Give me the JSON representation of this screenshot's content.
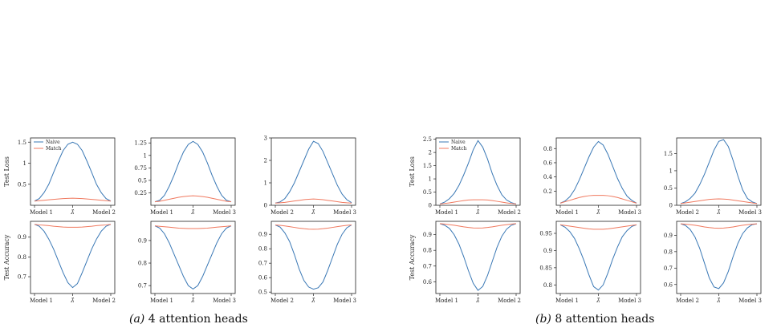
{
  "colors": {
    "naive": "#3a78b5",
    "match": "#f0795f",
    "axis": "#222222"
  },
  "captions": [
    {
      "label": "(a)",
      "text": "4 attention heads"
    },
    {
      "label": "(b)",
      "text": "8 attention heads"
    }
  ],
  "chart_data": [
    {
      "type": "line",
      "group": "a",
      "row": "loss",
      "ylabel": "Test Loss",
      "x_ticklabels": [
        "Model 1",
        "λ̂",
        "Model 2"
      ],
      "ylim": [
        0.0,
        1.6
      ],
      "yticks": [
        0.5,
        1.0,
        1.5
      ],
      "legend": {
        "placement": "top-left",
        "entries": [
          "Naive",
          "Match"
        ]
      },
      "series": [
        {
          "name": "Naive",
          "values": [
            0.1,
            0.16,
            0.3,
            0.5,
            0.78,
            1.05,
            1.3,
            1.45,
            1.5,
            1.45,
            1.3,
            1.05,
            0.78,
            0.5,
            0.3,
            0.16,
            0.1
          ]
        },
        {
          "name": "Match",
          "values": [
            0.1,
            0.11,
            0.12,
            0.13,
            0.14,
            0.15,
            0.16,
            0.165,
            0.17,
            0.165,
            0.16,
            0.15,
            0.14,
            0.13,
            0.12,
            0.11,
            0.1
          ]
        }
      ]
    },
    {
      "type": "line",
      "group": "a",
      "row": "loss",
      "ylabel": "",
      "x_ticklabels": [
        "Model 1",
        "λ̂",
        "Model 3"
      ],
      "ylim": [
        0.0,
        1.35
      ],
      "yticks": [
        0.25,
        0.5,
        0.75,
        1.0,
        1.25
      ],
      "series": [
        {
          "name": "Naive",
          "values": [
            0.07,
            0.1,
            0.2,
            0.38,
            0.6,
            0.85,
            1.07,
            1.22,
            1.28,
            1.22,
            1.07,
            0.85,
            0.6,
            0.38,
            0.2,
            0.1,
            0.07
          ]
        },
        {
          "name": "Match",
          "values": [
            0.07,
            0.08,
            0.1,
            0.12,
            0.14,
            0.16,
            0.175,
            0.185,
            0.19,
            0.185,
            0.175,
            0.16,
            0.14,
            0.12,
            0.1,
            0.08,
            0.07
          ]
        }
      ]
    },
    {
      "type": "line",
      "group": "a",
      "row": "loss",
      "ylabel": "",
      "x_ticklabels": [
        "Model 2",
        "λ̂",
        "Model 3"
      ],
      "ylim": [
        0.0,
        3.0
      ],
      "yticks": [
        0,
        1,
        2,
        3
      ],
      "series": [
        {
          "name": "Naive",
          "values": [
            0.1,
            0.15,
            0.3,
            0.6,
            1.0,
            1.5,
            2.0,
            2.5,
            2.85,
            2.75,
            2.4,
            1.9,
            1.4,
            0.9,
            0.5,
            0.25,
            0.12
          ]
        },
        {
          "name": "Match",
          "values": [
            0.1,
            0.11,
            0.13,
            0.16,
            0.19,
            0.22,
            0.25,
            0.27,
            0.28,
            0.27,
            0.25,
            0.22,
            0.19,
            0.16,
            0.13,
            0.11,
            0.1
          ]
        }
      ]
    },
    {
      "type": "line",
      "group": "a",
      "row": "accuracy",
      "ylabel": "Test Accuracy",
      "x_ticklabels": [
        "Model 1",
        "λ̂",
        "Model 2"
      ],
      "ylim": [
        0.615,
        0.98
      ],
      "yticks": [
        0.7,
        0.8,
        0.9
      ],
      "series": [
        {
          "name": "Naive",
          "values": [
            0.965,
            0.955,
            0.93,
            0.89,
            0.84,
            0.78,
            0.72,
            0.67,
            0.645,
            0.665,
            0.72,
            0.78,
            0.84,
            0.89,
            0.93,
            0.955,
            0.965
          ]
        },
        {
          "name": "Match",
          "values": [
            0.965,
            0.962,
            0.96,
            0.958,
            0.955,
            0.953,
            0.951,
            0.95,
            0.95,
            0.95,
            0.951,
            0.953,
            0.955,
            0.958,
            0.96,
            0.962,
            0.965
          ]
        }
      ]
    },
    {
      "type": "line",
      "group": "a",
      "row": "accuracy",
      "ylabel": "",
      "x_ticklabels": [
        "Model 1",
        "λ̂",
        "Model 3"
      ],
      "ylim": [
        0.665,
        0.985
      ],
      "yticks": [
        0.7,
        0.8,
        0.9
      ],
      "series": [
        {
          "name": "Naive",
          "values": [
            0.965,
            0.955,
            0.93,
            0.89,
            0.84,
            0.79,
            0.74,
            0.7,
            0.685,
            0.7,
            0.74,
            0.79,
            0.84,
            0.89,
            0.93,
            0.955,
            0.965
          ]
        },
        {
          "name": "Match",
          "values": [
            0.965,
            0.963,
            0.961,
            0.959,
            0.957,
            0.955,
            0.954,
            0.953,
            0.953,
            0.953,
            0.954,
            0.955,
            0.957,
            0.959,
            0.961,
            0.963,
            0.965
          ]
        }
      ]
    },
    {
      "type": "line",
      "group": "a",
      "row": "accuracy",
      "ylabel": "",
      "x_ticklabels": [
        "Model 2",
        "λ̂",
        "Model 3"
      ],
      "ylim": [
        0.49,
        0.99
      ],
      "yticks": [
        0.5,
        0.6,
        0.7,
        0.8,
        0.9
      ],
      "series": [
        {
          "name": "Naive",
          "values": [
            0.965,
            0.95,
            0.91,
            0.85,
            0.76,
            0.66,
            0.58,
            0.535,
            0.52,
            0.53,
            0.57,
            0.65,
            0.74,
            0.83,
            0.9,
            0.945,
            0.965
          ]
        },
        {
          "name": "Match",
          "values": [
            0.965,
            0.962,
            0.958,
            0.953,
            0.948,
            0.943,
            0.939,
            0.936,
            0.935,
            0.936,
            0.939,
            0.943,
            0.948,
            0.953,
            0.958,
            0.962,
            0.965
          ]
        }
      ]
    },
    {
      "type": "line",
      "group": "b",
      "row": "loss",
      "ylabel": "Test Loss",
      "x_ticklabels": [
        "Model 1",
        "λ̂",
        "Model 2"
      ],
      "ylim": [
        0.0,
        2.55
      ],
      "yticks": [
        0.0,
        0.5,
        1.0,
        1.5,
        2.0,
        2.5
      ],
      "legend": {
        "placement": "top-left",
        "entries": [
          "Naive",
          "Match"
        ]
      },
      "series": [
        {
          "name": "Naive",
          "values": [
            0.05,
            0.12,
            0.25,
            0.45,
            0.75,
            1.15,
            1.6,
            2.1,
            2.45,
            2.2,
            1.75,
            1.2,
            0.75,
            0.4,
            0.2,
            0.1,
            0.05
          ]
        },
        {
          "name": "Match",
          "values": [
            0.05,
            0.07,
            0.09,
            0.12,
            0.15,
            0.18,
            0.2,
            0.21,
            0.21,
            0.21,
            0.2,
            0.18,
            0.15,
            0.12,
            0.09,
            0.07,
            0.05
          ]
        }
      ]
    },
    {
      "type": "line",
      "group": "b",
      "row": "loss",
      "ylabel": "",
      "x_ticklabels": [
        "Model 1",
        "λ̂",
        "Model 3"
      ],
      "ylim": [
        0.0,
        0.95
      ],
      "yticks": [
        0.2,
        0.4,
        0.6,
        0.8
      ],
      "series": [
        {
          "name": "Naive",
          "values": [
            0.03,
            0.06,
            0.12,
            0.22,
            0.36,
            0.52,
            0.68,
            0.82,
            0.9,
            0.85,
            0.72,
            0.55,
            0.38,
            0.24,
            0.13,
            0.07,
            0.03
          ]
        },
        {
          "name": "Match",
          "values": [
            0.03,
            0.05,
            0.07,
            0.09,
            0.11,
            0.125,
            0.135,
            0.14,
            0.14,
            0.14,
            0.135,
            0.125,
            0.11,
            0.09,
            0.07,
            0.05,
            0.03
          ]
        }
      ]
    },
    {
      "type": "line",
      "group": "b",
      "row": "loss",
      "ylabel": "",
      "x_ticklabels": [
        "Model 2",
        "λ̂",
        "Model 3"
      ],
      "ylim": [
        0.0,
        1.95
      ],
      "yticks": [
        0.0,
        0.5,
        1.0,
        1.5
      ],
      "series": [
        {
          "name": "Naive",
          "values": [
            0.05,
            0.1,
            0.2,
            0.35,
            0.6,
            0.9,
            1.25,
            1.6,
            1.85,
            1.9,
            1.7,
            1.3,
            0.85,
            0.45,
            0.2,
            0.1,
            0.05
          ]
        },
        {
          "name": "Match",
          "values": [
            0.05,
            0.07,
            0.09,
            0.11,
            0.13,
            0.15,
            0.17,
            0.18,
            0.185,
            0.18,
            0.17,
            0.15,
            0.13,
            0.11,
            0.09,
            0.07,
            0.05
          ]
        }
      ]
    },
    {
      "type": "line",
      "group": "b",
      "row": "accuracy",
      "ylabel": "Test Accuracy",
      "x_ticklabels": [
        "Model 1",
        "λ̂",
        "Model 2"
      ],
      "ylim": [
        0.525,
        0.985
      ],
      "yticks": [
        0.6,
        0.7,
        0.8,
        0.9
      ],
      "series": [
        {
          "name": "Naive",
          "values": [
            0.97,
            0.96,
            0.94,
            0.9,
            0.84,
            0.76,
            0.67,
            0.59,
            0.545,
            0.57,
            0.64,
            0.73,
            0.82,
            0.89,
            0.935,
            0.96,
            0.97
          ]
        },
        {
          "name": "Match",
          "values": [
            0.97,
            0.968,
            0.964,
            0.96,
            0.955,
            0.95,
            0.946,
            0.943,
            0.942,
            0.943,
            0.946,
            0.95,
            0.955,
            0.96,
            0.964,
            0.968,
            0.97
          ]
        }
      ]
    },
    {
      "type": "line",
      "group": "b",
      "row": "accuracy",
      "ylabel": "",
      "x_ticklabels": [
        "Model 1",
        "λ̂",
        "Model 3"
      ],
      "ylim": [
        0.775,
        0.985
      ],
      "yticks": [
        0.8,
        0.85,
        0.9,
        0.95
      ],
      "series": [
        {
          "name": "Naive",
          "values": [
            0.975,
            0.968,
            0.955,
            0.935,
            0.905,
            0.87,
            0.83,
            0.795,
            0.785,
            0.8,
            0.835,
            0.875,
            0.91,
            0.94,
            0.958,
            0.97,
            0.975
          ]
        },
        {
          "name": "Match",
          "values": [
            0.975,
            0.973,
            0.971,
            0.969,
            0.967,
            0.965,
            0.963,
            0.962,
            0.962,
            0.962,
            0.963,
            0.965,
            0.967,
            0.969,
            0.971,
            0.973,
            0.975
          ]
        }
      ]
    },
    {
      "type": "line",
      "group": "b",
      "row": "accuracy",
      "ylabel": "",
      "x_ticklabels": [
        "Model 2",
        "λ̂",
        "Model 3"
      ],
      "ylim": [
        0.545,
        0.985
      ],
      "yticks": [
        0.6,
        0.7,
        0.8,
        0.9
      ],
      "series": [
        {
          "name": "Naive",
          "values": [
            0.97,
            0.96,
            0.935,
            0.89,
            0.82,
            0.73,
            0.64,
            0.585,
            0.575,
            0.61,
            0.68,
            0.77,
            0.85,
            0.91,
            0.945,
            0.965,
            0.97
          ]
        },
        {
          "name": "Match",
          "values": [
            0.97,
            0.968,
            0.965,
            0.961,
            0.956,
            0.951,
            0.947,
            0.944,
            0.943,
            0.944,
            0.947,
            0.951,
            0.956,
            0.961,
            0.965,
            0.968,
            0.97
          ]
        }
      ]
    }
  ]
}
